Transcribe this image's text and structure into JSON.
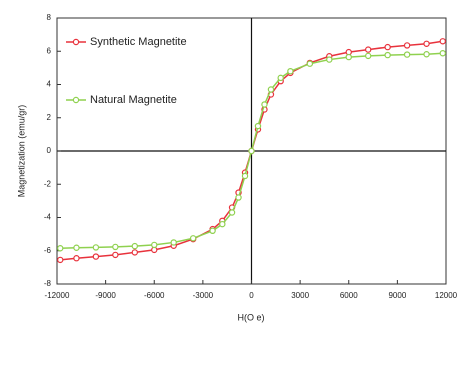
{
  "chart_data": {
    "type": "line",
    "xlabel": "H(O e)",
    "ylabel": "Magnetization (emu/gr)",
    "x": [
      -11800,
      -10800,
      -9600,
      -8400,
      -7200,
      -6000,
      -4800,
      -3600,
      -2400,
      -1800,
      -1200,
      -800,
      -400,
      0,
      400,
      800,
      1200,
      1800,
      2400,
      3600,
      4800,
      6000,
      7200,
      8400,
      9600,
      10800,
      11800
    ],
    "series": [
      {
        "name": "Synthetic Magnetite",
        "color": "#e8323c",
        "values": [
          -6.55,
          -6.45,
          -6.35,
          -6.25,
          -6.1,
          -5.95,
          -5.7,
          -5.3,
          -4.7,
          -4.2,
          -3.4,
          -2.5,
          -1.3,
          0,
          1.3,
          2.5,
          3.4,
          4.2,
          4.7,
          5.3,
          5.7,
          5.95,
          6.1,
          6.25,
          6.35,
          6.45,
          6.6
        ]
      },
      {
        "name": "Natural Magnetite",
        "color": "#8fd14f",
        "values": [
          -5.85,
          -5.82,
          -5.8,
          -5.77,
          -5.72,
          -5.65,
          -5.5,
          -5.25,
          -4.8,
          -4.4,
          -3.7,
          -2.8,
          -1.5,
          0,
          1.5,
          2.8,
          3.7,
          4.4,
          4.8,
          5.25,
          5.5,
          5.65,
          5.72,
          5.77,
          5.8,
          5.82,
          5.88
        ]
      }
    ],
    "xlim": [
      -12000,
      12000
    ],
    "xticks": [
      -12000,
      -9000,
      -6000,
      -3000,
      0,
      3000,
      6000,
      9000,
      12000
    ],
    "ylim": [
      -8,
      8
    ],
    "yticks": [
      -8,
      -6,
      -4,
      -2,
      0,
      2,
      4,
      6,
      8
    ],
    "legend": "upper-left"
  }
}
